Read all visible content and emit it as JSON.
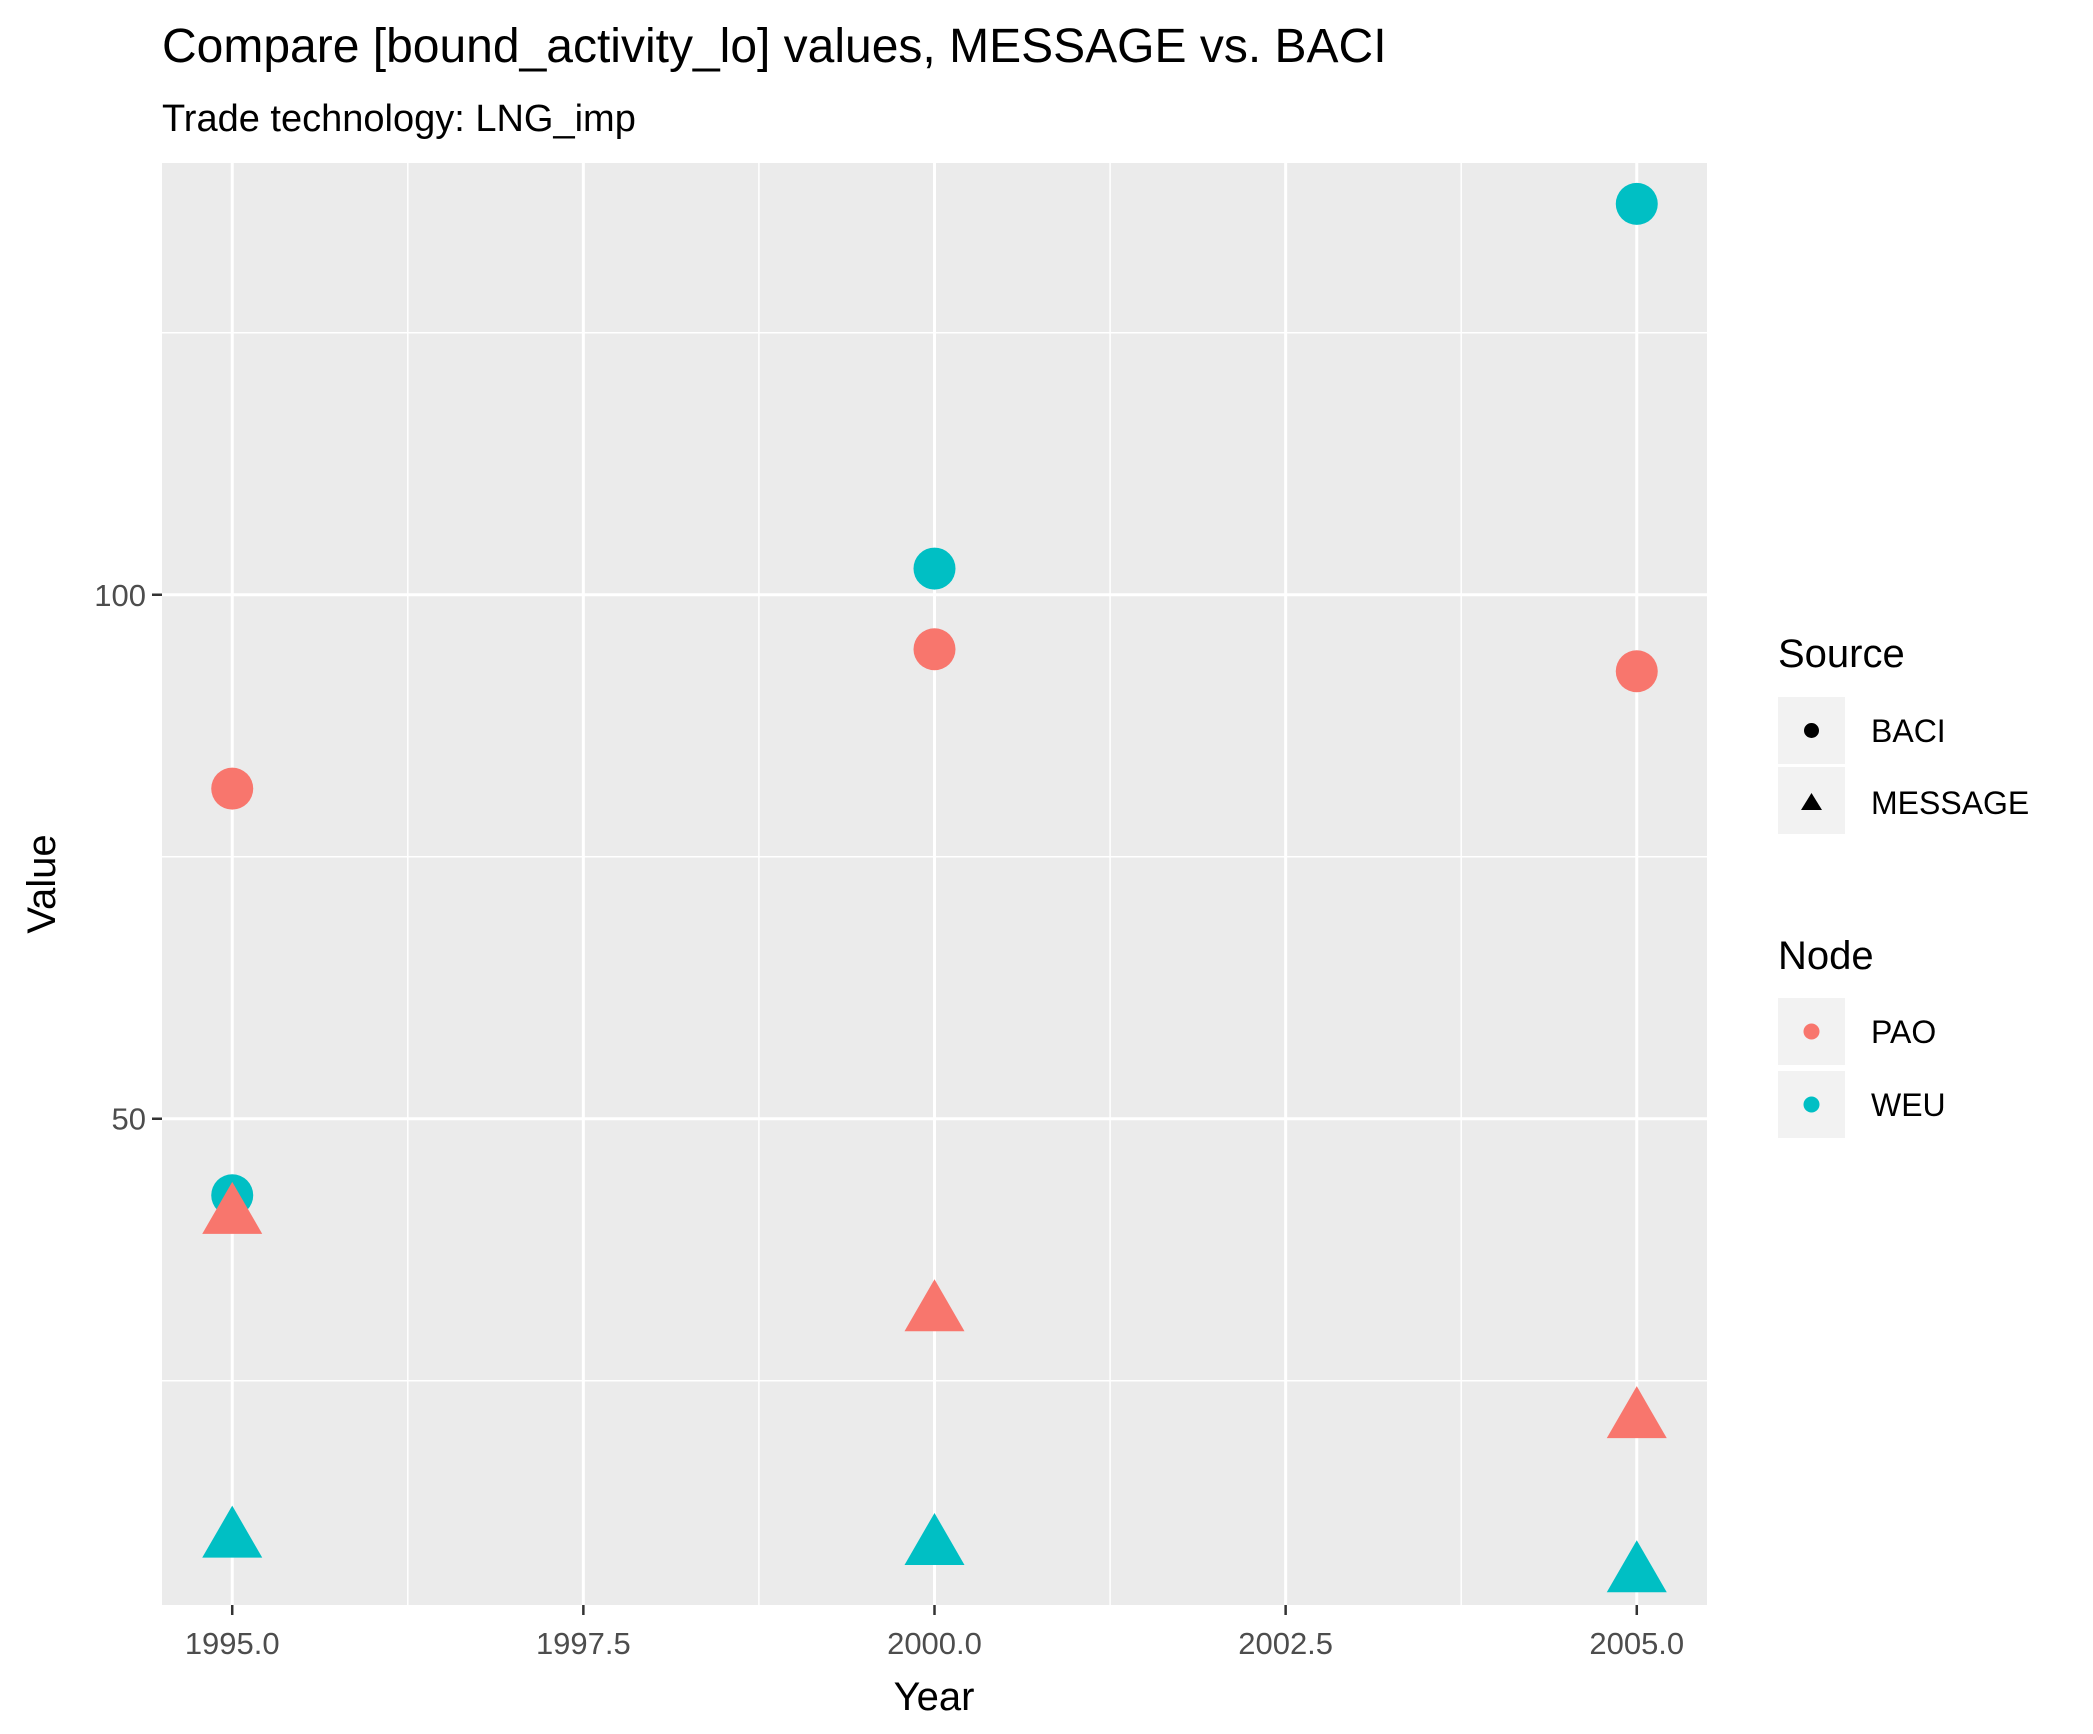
{
  "chart_data": {
    "type": "scatter",
    "title": "Compare [bound_activity_lo] values, MESSAGE vs. BACI",
    "subtitle": "Trade technology: LNG_imp",
    "xlabel": "Year",
    "ylabel": "Value",
    "xlim": [
      1994.5,
      2005.5
    ],
    "ylim": [
      3.6,
      141.2
    ],
    "x_ticks": [
      1995,
      1997.5,
      2000,
      2002.5,
      2005
    ],
    "x_tick_labels": [
      "1995.0",
      "1997.5",
      "2000.0",
      "2002.5",
      "2005.0"
    ],
    "y_ticks": [
      50,
      100
    ],
    "y_tick_labels": [
      "50",
      "100"
    ],
    "grid": true,
    "legend_position": "right",
    "colors": {
      "PAO": "#F8766D",
      "WEU": "#00BFC4"
    },
    "series": [
      {
        "source": "BACI",
        "node": "PAO",
        "shape": "circle",
        "x": [
          1995,
          2000,
          2005
        ],
        "y": [
          81.5,
          94.8,
          92.7
        ]
      },
      {
        "source": "BACI",
        "node": "WEU",
        "shape": "circle",
        "x": [
          1995,
          2000,
          2005
        ],
        "y": [
          42.7,
          102.5,
          137.3
        ]
      },
      {
        "source": "MESSAGE",
        "node": "PAO",
        "shape": "triangle",
        "x": [
          1995,
          2000,
          2005
        ],
        "y": [
          41.5,
          32.2,
          22.0
        ]
      },
      {
        "source": "MESSAGE",
        "node": "WEU",
        "shape": "triangle",
        "x": [
          1995,
          2000,
          2005
        ],
        "y": [
          10.6,
          9.9,
          7.3
        ]
      }
    ],
    "legend": {
      "source": {
        "title": "Source",
        "items": [
          {
            "label": "BACI",
            "shape": "circle"
          },
          {
            "label": "MESSAGE",
            "shape": "triangle"
          }
        ]
      },
      "node": {
        "title": "Node",
        "items": [
          {
            "label": "PAO"
          },
          {
            "label": "WEU"
          }
        ]
      }
    }
  }
}
